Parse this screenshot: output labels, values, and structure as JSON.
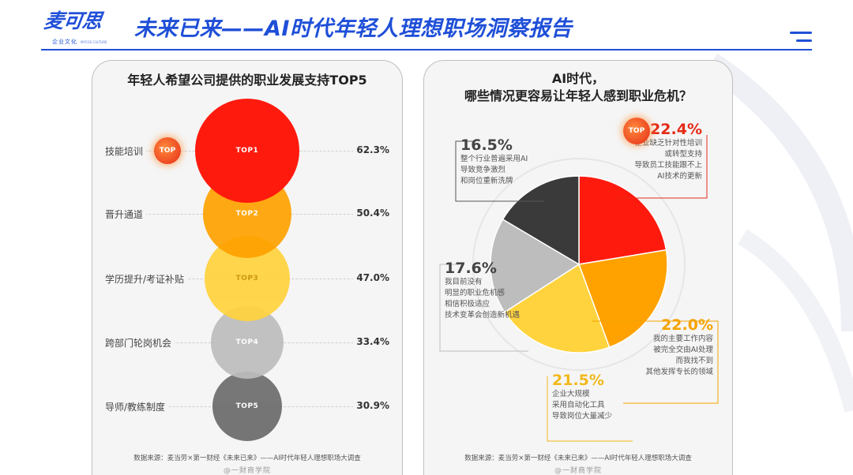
{
  "header": {
    "logo_main": "麦可思",
    "logo_sub": "企业文化",
    "logo_sub_en": "MYCOS CULTURE",
    "title": "未来已来——AI时代年轻人理想职场洞察报告"
  },
  "left_panel": {
    "title": "年轻人希望公司提供的职业发展支持TOP5",
    "badge": "TOP",
    "source": "数据来源：麦当劳×第一财经《未来已来》——AI时代年轻人理想职场大调查",
    "watermark": "@一财商学院"
  },
  "right_panel": {
    "title_line1": "AI时代，",
    "title_line2": "哪些情况更容易让年轻人感到职业危机？",
    "badge": "TOP",
    "source": "数据来源：麦当劳×第一财经《未来已来》——AI时代年轻人理想职场大调查",
    "watermark": "@一财商学院"
  },
  "colors": {
    "brand_blue": "#1f4fd8",
    "red": "#ff1a0e",
    "orange": "#ffa200",
    "yellow": "#ffd33d",
    "light_grey": "#bdbdbd",
    "dark_grey": "#6b6b6b",
    "charcoal": "#3a3a3a"
  },
  "chart_data": [
    {
      "type": "bubble",
      "title": "年轻人希望公司提供的职业发展支持TOP5",
      "categories": [
        "技能培训",
        "晋升通道",
        "学历提升/考证补贴",
        "跨部门轮岗机会",
        "导师/教练制度"
      ],
      "ranks": [
        "TOP1",
        "TOP2",
        "TOP3",
        "TOP4",
        "TOP5"
      ],
      "values": [
        62.3,
        50.4,
        47.0,
        33.4,
        30.9
      ],
      "value_labels": [
        "62.3%",
        "50.4%",
        "47.0%",
        "33.4%",
        "30.9%"
      ],
      "colors": [
        "#ff1a0e",
        "#ffa200",
        "#ffd33d",
        "#bdbdbd",
        "#6b6b6b"
      ]
    },
    {
      "type": "pie",
      "title": "AI时代，哪些情况更容易让年轻人感到职业危机？",
      "slices": [
        {
          "label": "企业缺乏针对性培训或转型支持导致员工技能跟不上AI技术的更新",
          "value": 22.4,
          "value_label": "22.4%",
          "color": "#ff1a0e",
          "lines": [
            "企业缺乏针对性培训",
            "或转型支持",
            "导致员工技能跟不上",
            "AI技术的更新"
          ]
        },
        {
          "label": "我的主要工作内容被完全交由AI处理而我找不到其他发挥专长的领域",
          "value": 22.0,
          "value_label": "22.0%",
          "color": "#ffa200",
          "lines": [
            "我的主要工作内容",
            "被完全交由AI处理",
            "而我找不到",
            "其他发挥专长的领域"
          ]
        },
        {
          "label": "企业大规模采用自动化工具导致岗位大量减少",
          "value": 21.5,
          "value_label": "21.5%",
          "color": "#ffd33d",
          "lines": [
            "企业大规模",
            "采用自动化工具",
            "导致岗位大量减少"
          ]
        },
        {
          "label": "我目前没有明显的职业危机感相信积极适应技术变革会创造新机遇",
          "value": 17.6,
          "value_label": "17.6%",
          "color": "#bdbdbd",
          "lines": [
            "我目前没有",
            "明显的职业危机感",
            "相信积极适应",
            "技术变革会创造新机遇"
          ]
        },
        {
          "label": "整个行业普遍采用AI导致竞争激烈和岗位重新洗牌",
          "value": 16.5,
          "value_label": "16.5%",
          "color": "#3a3a3a",
          "lines": [
            "整个行业普遍采用AI",
            "导致竞争激烈",
            "和岗位重新洗牌"
          ]
        }
      ]
    }
  ]
}
